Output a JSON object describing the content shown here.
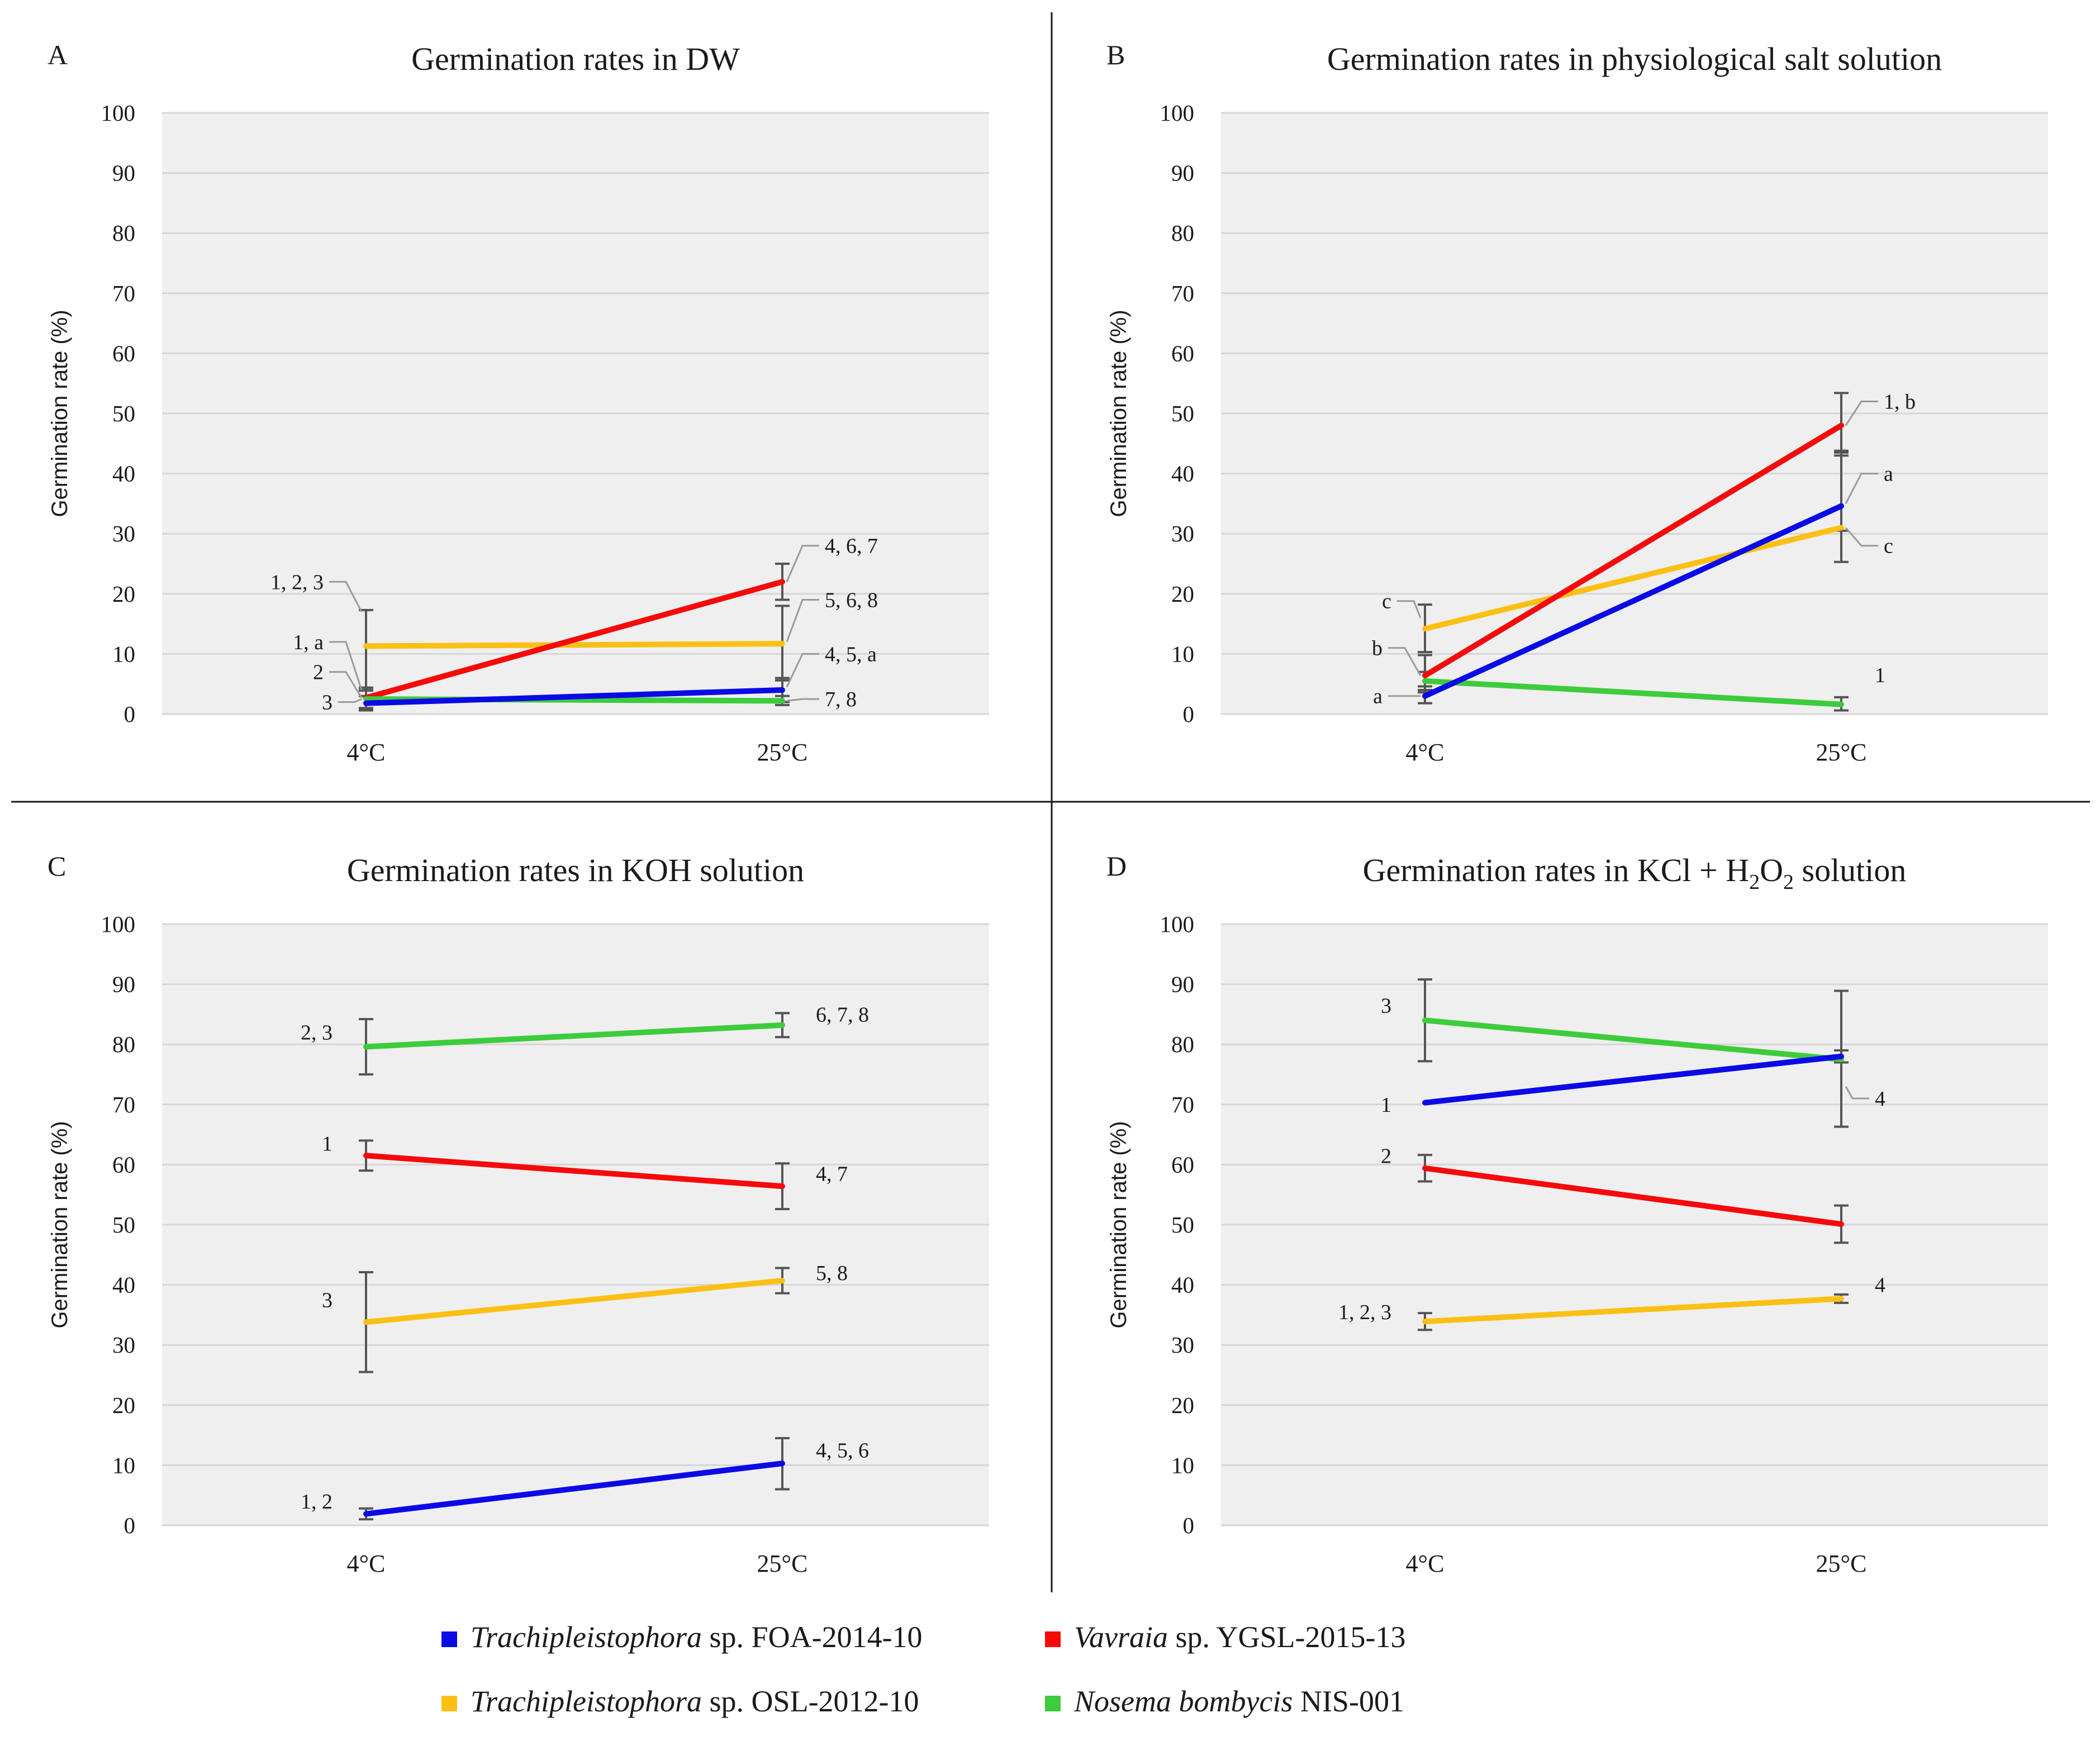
{
  "colors": {
    "blue": "#0a0ae6",
    "red": "#f50a0a",
    "orange": "#fcc015",
    "green": "#3ccc3c",
    "plot_bg": "#efefef",
    "grid": "#d6d6d6",
    "errorbar": "#555555",
    "leader": "#9a9a9a",
    "divider": "#1a1a1a"
  },
  "legend": [
    {
      "italic": "Trachipleistophora",
      "rest": " sp. FOA-2014-10",
      "color": "blue"
    },
    {
      "italic": "Vavraia",
      "rest": " sp. YGSL-2015-13",
      "color": "red"
    },
    {
      "italic": "Trachipleistophora",
      "rest": " sp. OSL-2012-10",
      "color": "orange"
    },
    {
      "italic": "Nosema bombycis",
      "rest": " NIS-001",
      "color": "green"
    }
  ],
  "chart_data": [
    {
      "type": "line",
      "panel": "A",
      "title": "Germination rates in DW",
      "title_parts": [
        {
          "t": "Germination  rates  in  DW"
        }
      ],
      "xlabel": "",
      "ylabel": "Germination  rate (%)",
      "categories": [
        "4°C",
        "25°C"
      ],
      "ylim": [
        0,
        100
      ],
      "yticks": [
        "0",
        "10",
        "20",
        "30",
        "40",
        "50",
        "60",
        "70",
        "80",
        "90",
        "100"
      ],
      "grid": true,
      "series": [
        {
          "name": "Trachipleistophora sp. OSL-2012-10",
          "color": "orange",
          "values": [
            11.3,
            11.7
          ],
          "errors": [
            [
              4.3,
              17.3
            ],
            [
              5.6,
              18.0
            ]
          ]
        },
        {
          "name": "Vavraia sp. YGSL-2015-13",
          "color": "red",
          "values": [
            2.7,
            22.0
          ],
          "errors": [
            [
              0.8,
              4.4
            ],
            [
              19.0,
              25.0
            ]
          ]
        },
        {
          "name": "Nosema bombycis NIS-001",
          "color": "green",
          "values": [
            2.5,
            2.2
          ],
          "errors": [
            [
              1.0,
              3.9
            ],
            [
              1.5,
              3.0
            ]
          ]
        },
        {
          "name": "Trachipleistophora sp. FOA-2014-10",
          "color": "blue",
          "values": [
            1.8,
            4.0
          ],
          "errors": [
            [
              0.6,
              3.0
            ],
            [
              2.0,
              6.0
            ]
          ]
        }
      ],
      "annotations": [
        {
          "text": "1, 2, 3",
          "cat": 0,
          "y": 22.0,
          "side": "left",
          "tx": 76,
          "ty": 22.0,
          "py": 17.0
        },
        {
          "text": "1, a",
          "cat": 0,
          "y": 12.0,
          "side": "left",
          "tx": 76,
          "ty": 12.0,
          "py": 4.0
        },
        {
          "text": "2",
          "cat": 0,
          "y": 7.0,
          "side": "left",
          "tx": 76,
          "ty": 7.0,
          "py": 2.7
        },
        {
          "text": "3",
          "cat": 0,
          "y": 2.0,
          "side": "left",
          "tx": 60,
          "ty": 2.0,
          "py": 2.5
        },
        {
          "text": "4, 6, 7",
          "cat": 1,
          "y": 28.0,
          "side": "right",
          "tx": 76,
          "ty": 28.0,
          "py": 22.0
        },
        {
          "text": "5, 6, 8",
          "cat": 1,
          "y": 19.0,
          "side": "right",
          "tx": 76,
          "ty": 19.0,
          "py": 12.0
        },
        {
          "text": "4, 5, a",
          "cat": 1,
          "y": 10.0,
          "side": "right",
          "tx": 76,
          "ty": 10.0,
          "py": 4.5
        },
        {
          "text": "7, 8",
          "cat": 1,
          "y": 2.5,
          "side": "right",
          "tx": 76,
          "ty": 2.5,
          "py": 2.2
        }
      ]
    },
    {
      "type": "line",
      "panel": "B",
      "title": "Germination rates in physiological salt solution",
      "title_parts": [
        {
          "t": "Germination  rates  in  physiological  salt  solution"
        }
      ],
      "xlabel": "",
      "ylabel": "Germination  rate (%)",
      "categories": [
        "4°C",
        "25°C"
      ],
      "ylim": [
        0,
        100
      ],
      "yticks": [
        "0",
        "10",
        "20",
        "30",
        "40",
        "50",
        "60",
        "70",
        "80",
        "90",
        "100"
      ],
      "grid": true,
      "series": [
        {
          "name": "Nosema bombycis NIS-001",
          "color": "green",
          "values": [
            5.5,
            1.6
          ],
          "errors": [
            [
              4.0,
              7.0
            ],
            [
              0.6,
              2.8
            ]
          ]
        },
        {
          "name": "Trachipleistophora sp. OSL-2012-10",
          "color": "orange",
          "values": [
            14.2,
            31.0
          ],
          "errors": [
            [
              10.3,
              18.2
            ],
            [
              25.3,
              43.5
            ]
          ]
        },
        {
          "name": "Vavraia sp. YGSL-2015-13",
          "color": "red",
          "values": [
            6.4,
            48.0
          ],
          "errors": [
            [
              3.6,
              9.8
            ],
            [
              43.0,
              53.4
            ]
          ]
        },
        {
          "name": "Trachipleistophora sp. FOA-2014-10",
          "color": "blue",
          "values": [
            3.0,
            34.6
          ],
          "errors": [
            [
              1.8,
              4.6
            ],
            [
              30.5,
              43.8
            ]
          ]
        }
      ],
      "annotations": [
        {
          "text": "c",
          "cat": 0,
          "y": 18.8,
          "side": "left",
          "tx": 60,
          "ty": 18.8,
          "py": 16.0
        },
        {
          "text": "b",
          "cat": 0,
          "y": 11.0,
          "side": "left",
          "tx": 76,
          "ty": 11.0,
          "py": 6.4
        },
        {
          "text": "a",
          "cat": 0,
          "y": 3.0,
          "side": "left",
          "tx": 76,
          "ty": 3.0,
          "py": 3.0
        },
        {
          "text": "1, b",
          "cat": 1,
          "y": 52.0,
          "side": "right",
          "tx": 76,
          "ty": 52.0,
          "py": 48.0
        },
        {
          "text": "a",
          "cat": 1,
          "y": 40.0,
          "side": "right",
          "tx": 76,
          "ty": 40.0,
          "py": 35.0
        },
        {
          "text": "c",
          "cat": 1,
          "y": 28.0,
          "side": "right",
          "tx": 76,
          "ty": 28.0,
          "py": 31.0
        },
        {
          "text": "1",
          "cat": 1,
          "y": 6.5,
          "side": "right",
          "tx": 60,
          "ty": 6.5
        }
      ]
    },
    {
      "type": "line",
      "panel": "C",
      "title": "Germination rates in KOH solution",
      "title_parts": [
        {
          "t": "Germination  rates  in  KOH  solution"
        }
      ],
      "xlabel": "",
      "ylabel": "Germination  rate (%)",
      "categories": [
        "4°C",
        "25°C"
      ],
      "ylim": [
        0,
        100
      ],
      "yticks": [
        "0",
        "10",
        "20",
        "30",
        "40",
        "50",
        "60",
        "70",
        "80",
        "90",
        "100"
      ],
      "grid": true,
      "series": [
        {
          "name": "Nosema bombycis NIS-001",
          "color": "green",
          "values": [
            79.6,
            83.2
          ],
          "errors": [
            [
              75.0,
              84.2
            ],
            [
              81.2,
              85.2
            ]
          ]
        },
        {
          "name": "Vavraia sp. YGSL-2015-13",
          "color": "red",
          "values": [
            61.5,
            56.4
          ],
          "errors": [
            [
              59.0,
              64.0
            ],
            [
              52.6,
              60.2
            ]
          ]
        },
        {
          "name": "Trachipleistophora sp. OSL-2012-10",
          "color": "orange",
          "values": [
            33.8,
            40.7
          ],
          "errors": [
            [
              25.5,
              42.1
            ],
            [
              38.6,
              42.8
            ]
          ]
        },
        {
          "name": "Trachipleistophora sp. FOA-2014-10",
          "color": "blue",
          "values": [
            1.9,
            10.3
          ],
          "errors": [
            [
              1.0,
              2.8
            ],
            [
              6.0,
              14.5
            ]
          ]
        }
      ],
      "annotations": [
        {
          "text": "2, 3",
          "cat": 0,
          "y": 82.0,
          "side": "left",
          "tx": 60,
          "ty": 82.0
        },
        {
          "text": "1",
          "cat": 0,
          "y": 63.5,
          "side": "left",
          "tx": 60,
          "ty": 63.5
        },
        {
          "text": "3",
          "cat": 0,
          "y": 37.5,
          "side": "left",
          "tx": 60,
          "ty": 37.5
        },
        {
          "text": "1, 2",
          "cat": 0,
          "y": 4.0,
          "side": "left",
          "tx": 60,
          "ty": 4.0
        },
        {
          "text": "6, 7, 8",
          "cat": 1,
          "y": 85.0,
          "side": "right",
          "tx": 60,
          "ty": 85.0
        },
        {
          "text": "4, 7",
          "cat": 1,
          "y": 58.5,
          "side": "right",
          "tx": 60,
          "ty": 58.5
        },
        {
          "text": "5, 8",
          "cat": 1,
          "y": 42.0,
          "side": "right",
          "tx": 60,
          "ty": 42.0
        },
        {
          "text": "4, 5, 6",
          "cat": 1,
          "y": 12.5,
          "side": "right",
          "tx": 60,
          "ty": 12.5
        }
      ]
    },
    {
      "type": "line",
      "panel": "D",
      "title": "Germination rates in KCl + H2O2 solution",
      "title_parts": [
        {
          "t": "Germination  rates  in  KCl + H"
        },
        {
          "t": "2",
          "sub": true
        },
        {
          "t": "O"
        },
        {
          "t": "2",
          "sub": true
        },
        {
          "t": "  solution"
        }
      ],
      "xlabel": "",
      "ylabel": "Germination  rate (%)",
      "categories": [
        "4°C",
        "25°C"
      ],
      "ylim": [
        0,
        100
      ],
      "yticks": [
        "0",
        "10",
        "20",
        "30",
        "40",
        "50",
        "60",
        "70",
        "80",
        "90",
        "100"
      ],
      "grid": true,
      "series": [
        {
          "name": "Nosema bombycis NIS-001",
          "color": "green",
          "values": [
            84.0,
            77.5
          ],
          "errors": [
            [
              77.2,
              90.8
            ],
            [
              66.3,
              88.9
            ]
          ]
        },
        {
          "name": "Trachipleistophora sp. FOA-2014-10",
          "color": "blue",
          "values": [
            70.3,
            78.0
          ],
          "errors": [
            [
              70.3,
              70.3
            ],
            [
              77.0,
              79.0
            ]
          ]
        },
        {
          "name": "Vavraia sp. YGSL-2015-13",
          "color": "red",
          "values": [
            59.4,
            50.1
          ],
          "errors": [
            [
              57.2,
              61.6
            ],
            [
              47.0,
              53.2
            ]
          ]
        },
        {
          "name": "Trachipleistophora sp. OSL-2012-10",
          "color": "orange",
          "values": [
            33.9,
            37.7
          ],
          "errors": [
            [
              32.5,
              35.3
            ],
            [
              37.0,
              38.4
            ]
          ]
        }
      ],
      "annotations": [
        {
          "text": "3",
          "cat": 0,
          "y": 86.5,
          "side": "left",
          "tx": 60,
          "ty": 86.5
        },
        {
          "text": "1",
          "cat": 0,
          "y": 70.0,
          "side": "left",
          "tx": 60,
          "ty": 70.0
        },
        {
          "text": "2",
          "cat": 0,
          "y": 61.5,
          "side": "left",
          "tx": 60,
          "ty": 61.5
        },
        {
          "text": "1, 2, 3",
          "cat": 0,
          "y": 35.5,
          "side": "left",
          "tx": 60,
          "ty": 35.5
        },
        {
          "text": "4",
          "cat": 1,
          "y": 71.0,
          "side": "right",
          "tx": 60,
          "ty": 71.0,
          "py": 73.0
        },
        {
          "text": "4",
          "cat": 1,
          "y": 40.0,
          "side": "right",
          "tx": 60,
          "ty": 40.0
        }
      ]
    }
  ]
}
